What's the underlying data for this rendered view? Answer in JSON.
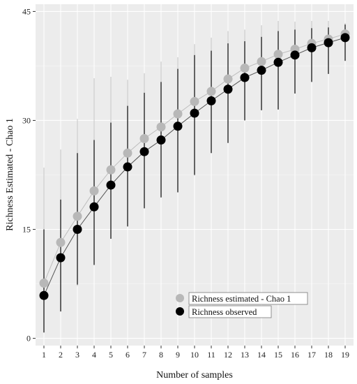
{
  "chart_data": {
    "type": "line",
    "xlabel": "Number of samples",
    "ylabel": "Richness Estimated - Chao 1",
    "x": [
      1,
      2,
      3,
      4,
      5,
      6,
      7,
      8,
      9,
      10,
      11,
      12,
      13,
      14,
      15,
      16,
      17,
      18,
      19
    ],
    "xlim": [
      0.5,
      19.5
    ],
    "ylim": [
      -1,
      46
    ],
    "yticks": [
      0,
      15,
      30,
      45
    ],
    "grid": true,
    "legend_position": "bottom-right",
    "series": [
      {
        "name": "Richness estimated - Chao 1",
        "color": "#b8b8b8",
        "values": [
          7.6,
          13.2,
          16.8,
          20.3,
          23.2,
          25.5,
          27.5,
          29.1,
          30.9,
          32.6,
          34.0,
          35.7,
          37.2,
          38.1,
          39.1,
          39.8,
          40.6,
          41.2,
          41.9
        ],
        "error_low": [
          0.9,
          3.8,
          7.2,
          10.5,
          13.7,
          15.7,
          18.2,
          19.4,
          20.4,
          22.4,
          25.6,
          27.3,
          30.2,
          31.6,
          31.5,
          33.8,
          35.3,
          36.5,
          38.3
        ],
        "error_high": [
          23.5,
          26.0,
          30.2,
          35.8,
          36.0,
          35.6,
          36.5,
          38.1,
          38.7,
          40.5,
          41.4,
          42.3,
          42.5,
          43.1,
          43.7,
          43.6,
          43.7,
          43.7,
          43.4
        ]
      },
      {
        "name": "Richness observed",
        "color": "#000000",
        "values": [
          5.9,
          11.1,
          15.0,
          18.1,
          21.1,
          23.6,
          25.7,
          27.3,
          29.2,
          31.0,
          32.7,
          34.3,
          35.9,
          36.9,
          38.0,
          39.0,
          40.0,
          40.7,
          41.4
        ],
        "error_low": [
          0.8,
          3.7,
          7.4,
          10.1,
          13.7,
          15.4,
          17.9,
          19.4,
          20.1,
          22.5,
          25.5,
          26.9,
          30.0,
          31.4,
          31.5,
          33.7,
          35.3,
          36.4,
          38.2
        ],
        "error_high": [
          15.0,
          19.1,
          25.5,
          27.3,
          29.7,
          32.0,
          33.8,
          35.3,
          37.1,
          39.0,
          39.6,
          40.6,
          40.9,
          41.5,
          42.3,
          42.5,
          42.7,
          42.8,
          43.2
        ]
      }
    ]
  }
}
